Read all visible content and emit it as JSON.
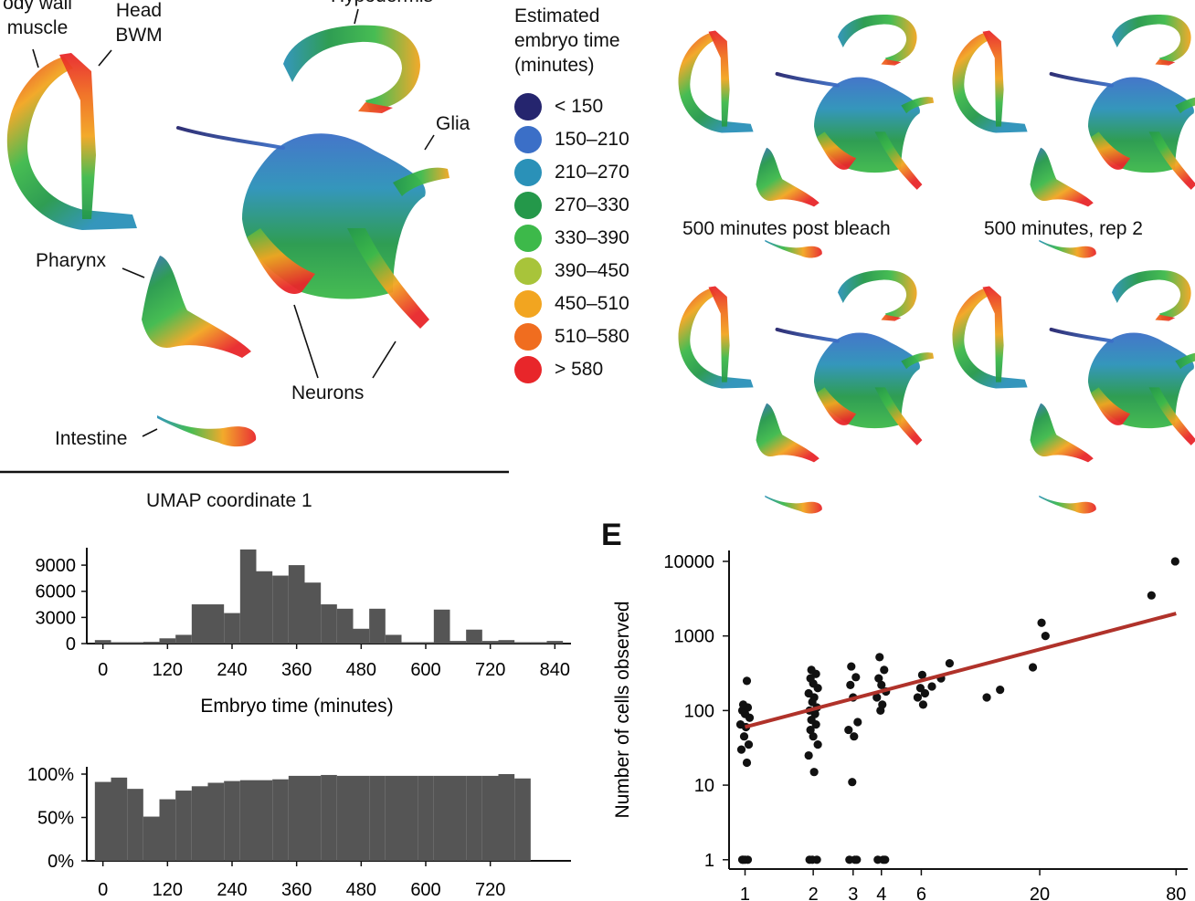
{
  "umap_labels": {
    "body_wall_muscle": "ody wall\nmuscle",
    "head_bwm": "Head\nBWM",
    "hypodermis": "Hypodermis",
    "glia": "Glia",
    "pharynx": "Pharynx",
    "neurons": "Neurons",
    "intestine": "Intestine"
  },
  "legend": {
    "title": "Estimated\nembryo time\n(minutes)",
    "items": [
      {
        "label": "< 150",
        "color": "#25256e"
      },
      {
        "label": "150–210",
        "color": "#3b6fc7"
      },
      {
        "label": "210–270",
        "color": "#2a91b8"
      },
      {
        "label": "270–330",
        "color": "#24984a"
      },
      {
        "label": "330–390",
        "color": "#3db94a"
      },
      {
        "label": "390–450",
        "color": "#a8c43a"
      },
      {
        "label": "450–510",
        "color": "#f2a520"
      },
      {
        "label": "510–580",
        "color": "#f06d1f"
      },
      {
        "label": "> 580",
        "color": "#e8262a"
      }
    ]
  },
  "panel_titles": {
    "post_bleach": "500 minutes post bleach",
    "rep2": "500 minutes, rep 2"
  },
  "umap_axis_label": "UMAP coordinate 1",
  "panel_e_letter": "E",
  "chart_data": [
    {
      "type": "bar",
      "id": "histogram_embryo_time",
      "xlabel": "Embryo time (minutes)",
      "ylabel": "",
      "xticks": [
        0,
        120,
        240,
        360,
        480,
        600,
        720,
        840
      ],
      "yticks": [
        0,
        3000,
        6000,
        9000
      ],
      "xlim": [
        -30,
        870
      ],
      "ylim": [
        0,
        11000
      ],
      "bin_width": 30,
      "bin_starts": [
        -15,
        15,
        45,
        75,
        105,
        135,
        165,
        195,
        225,
        255,
        285,
        315,
        345,
        375,
        405,
        435,
        465,
        495,
        525,
        555,
        585,
        615,
        645,
        675,
        705,
        735,
        765,
        795,
        825
      ],
      "values": [
        400,
        0,
        100,
        200,
        600,
        1000,
        4500,
        4500,
        3500,
        10800,
        8300,
        7800,
        9000,
        7000,
        4500,
        4000,
        1700,
        4000,
        1000,
        0,
        0,
        3900,
        300,
        1600,
        300,
        400,
        0,
        0,
        300
      ]
    },
    {
      "type": "bar",
      "id": "percent_bar",
      "xticks": [
        0,
        120,
        240,
        360,
        480,
        600,
        720
      ],
      "yticks": [
        "0%",
        "50%",
        "100%"
      ],
      "ylim": [
        0,
        100
      ],
      "bin_width": 30,
      "bin_starts": [
        -15,
        15,
        45,
        75,
        105,
        135,
        165,
        195,
        225,
        255,
        285,
        315,
        345,
        375,
        405,
        435,
        465,
        495,
        525,
        555,
        585,
        615,
        645,
        675,
        705,
        735,
        765
      ],
      "values": [
        91,
        96,
        83,
        51,
        71,
        81,
        86,
        90,
        92,
        93,
        93,
        94,
        98,
        98,
        99,
        98,
        98,
        98,
        98,
        98,
        98,
        98,
        98,
        98,
        98,
        100,
        95
      ]
    },
    {
      "type": "scatter",
      "id": "panel_E",
      "ylabel": "Number of cells observed",
      "xlabel": "",
      "x_scale": "log",
      "y_scale": "log",
      "xticks": [
        1,
        2,
        3,
        4,
        6,
        20,
        80
      ],
      "yticks": [
        1,
        10,
        100,
        1000,
        10000
      ],
      "xlim": [
        0.85,
        90
      ],
      "ylim": [
        0.75,
        14000
      ],
      "points": [
        [
          1,
          1
        ],
        [
          1,
          1
        ],
        [
          1,
          1
        ],
        [
          1,
          1
        ],
        [
          1,
          20
        ],
        [
          1,
          30
        ],
        [
          1,
          35
        ],
        [
          1,
          45
        ],
        [
          1,
          60
        ],
        [
          1,
          65
        ],
        [
          1,
          80
        ],
        [
          1,
          90
        ],
        [
          1,
          100
        ],
        [
          1,
          110
        ],
        [
          1,
          120
        ],
        [
          1,
          250
        ],
        [
          2,
          1
        ],
        [
          2,
          1
        ],
        [
          2,
          1
        ],
        [
          2,
          15
        ],
        [
          2,
          25
        ],
        [
          2,
          35
        ],
        [
          2,
          45
        ],
        [
          2,
          55
        ],
        [
          2,
          65
        ],
        [
          2,
          75
        ],
        [
          2,
          90
        ],
        [
          2,
          100
        ],
        [
          2,
          110
        ],
        [
          2,
          130
        ],
        [
          2,
          150
        ],
        [
          2,
          170
        ],
        [
          2,
          200
        ],
        [
          2,
          230
        ],
        [
          2,
          270
        ],
        [
          2,
          310
        ],
        [
          2,
          350
        ],
        [
          3,
          1
        ],
        [
          3,
          1
        ],
        [
          3,
          1
        ],
        [
          3,
          11
        ],
        [
          3,
          45
        ],
        [
          3,
          55
        ],
        [
          3,
          70
        ],
        [
          3,
          150
        ],
        [
          3,
          220
        ],
        [
          3,
          280
        ],
        [
          3,
          390
        ],
        [
          4,
          1
        ],
        [
          4,
          1
        ],
        [
          4,
          1
        ],
        [
          4,
          100
        ],
        [
          4,
          120
        ],
        [
          4,
          150
        ],
        [
          4,
          180
        ],
        [
          4,
          220
        ],
        [
          4,
          270
        ],
        [
          4,
          350
        ],
        [
          4,
          520
        ],
        [
          6,
          120
        ],
        [
          6,
          150
        ],
        [
          6,
          170
        ],
        [
          6,
          200
        ],
        [
          6,
          300
        ],
        [
          7,
          210
        ],
        [
          7,
          270
        ],
        [
          8,
          430
        ],
        [
          12,
          150
        ],
        [
          13,
          190
        ],
        [
          19,
          380
        ],
        [
          20,
          1500
        ],
        [
          22,
          1000
        ],
        [
          60,
          3500
        ],
        [
          80,
          10000
        ]
      ],
      "fit_line": {
        "color": "#b0322a",
        "from": [
          1,
          60
        ],
        "to": [
          80,
          2000
        ]
      }
    }
  ]
}
